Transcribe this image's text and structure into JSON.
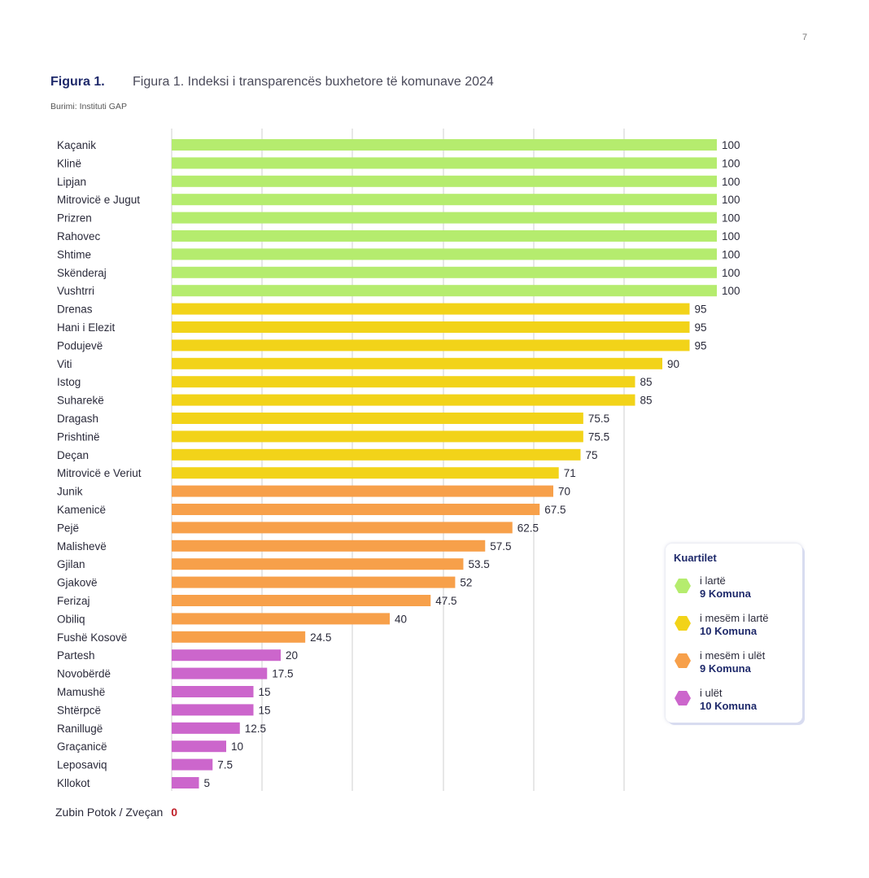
{
  "page_number": "7",
  "figure": {
    "label": "Figura 1.",
    "title": "Figura 1. Indeksi i transparencës buxhetore të komunave 2024",
    "source": "Burimi: Instituti GAP"
  },
  "colors": {
    "high": "#b5ec6e",
    "upper_mid": "#f2d319",
    "lower_mid": "#f7a04a",
    "low": "#cc66cc",
    "grid": "#cfcfcf"
  },
  "chart_data": {
    "type": "bar",
    "orientation": "horizontal",
    "title": "Figura 1. Indeksi i transparencës buxhetore të komunave 2024",
    "xlim": [
      0,
      100
    ],
    "grid": true,
    "categories": [
      "Kaçanik",
      "Klinë",
      "Lipjan",
      "Mitrovicë e Jugut",
      "Prizren",
      "Rahovec",
      "Shtime",
      "Skënderaj",
      "Vushtrri",
      "Drenas",
      "Hani i Elezit",
      "Podujevë",
      "Viti",
      "Istog",
      "Suharekë",
      "Dragash",
      "Prishtinë",
      "Deçan",
      "Mitrovicë e Veriut",
      "Junik",
      "Kamenicë",
      "Pejë",
      "Malishevë",
      "Gjilan",
      "Gjakovë",
      "Ferizaj",
      "Obiliq",
      "Fushë Kosovë",
      "Partesh",
      "Novobërdë",
      "Mamushë",
      "Shtërpcë",
      "Ranillugë",
      "Graçanicë",
      "Leposaviq",
      "Kllokot"
    ],
    "values": [
      100,
      100,
      100,
      100,
      100,
      100,
      100,
      100,
      100,
      95,
      95,
      95,
      90,
      85,
      85,
      75.5,
      75.5,
      75,
      71,
      70,
      67.5,
      62.5,
      57.5,
      53.5,
      52,
      47.5,
      40,
      24.5,
      20,
      17.5,
      15,
      15,
      12.5,
      10,
      7.5,
      5
    ],
    "value_labels": [
      "100",
      "100",
      "100",
      "100",
      "100",
      "100",
      "100",
      "100",
      "100",
      "95",
      "95",
      "95",
      "90",
      "85",
      "85",
      "75.5",
      "75.5",
      "75",
      "71",
      "70",
      "67.5",
      "62.5",
      "57.5",
      "53.5",
      "52",
      "47.5",
      "40",
      "24.5",
      "20",
      "17.5",
      "15",
      "15",
      "12.5",
      "10",
      "7.5",
      "5"
    ],
    "quartile": [
      "high",
      "high",
      "high",
      "high",
      "high",
      "high",
      "high",
      "high",
      "high",
      "upper_mid",
      "upper_mid",
      "upper_mid",
      "upper_mid",
      "upper_mid",
      "upper_mid",
      "upper_mid",
      "upper_mid",
      "upper_mid",
      "upper_mid",
      "lower_mid",
      "lower_mid",
      "lower_mid",
      "lower_mid",
      "lower_mid",
      "lower_mid",
      "lower_mid",
      "lower_mid",
      "lower_mid",
      "low",
      "low",
      "low",
      "low",
      "low",
      "low",
      "low",
      "low"
    ],
    "legend": {
      "title": "Kuartilet",
      "placement": "right",
      "items": [
        {
          "key": "high",
          "label": "i lartë",
          "count": "9 Komuna"
        },
        {
          "key": "upper_mid",
          "label": "i mesëm i lartë",
          "count": "10 Komuna"
        },
        {
          "key": "lower_mid",
          "label": "i mesëm i ulët",
          "count": "9 Komuna"
        },
        {
          "key": "low",
          "label": "i ulët",
          "count": "10 Komuna"
        }
      ]
    },
    "footnote": {
      "category": "Zubin Potok / Zveçan",
      "value": "0"
    }
  }
}
